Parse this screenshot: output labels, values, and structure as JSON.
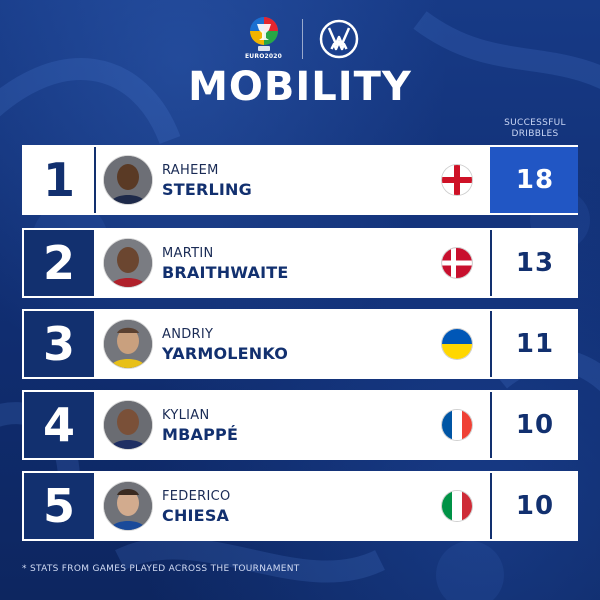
{
  "header": {
    "euro_logo_text": "EURO2020",
    "euro_logo_icon": "euro-2020-trophy-logo",
    "vw_logo_icon": "volkswagen-logo",
    "title": "MOBILITY"
  },
  "column_header": {
    "line1": "SUCCESSFUL",
    "line2": "DRIBBLES"
  },
  "colors": {
    "background": "#12306f",
    "accent_blue": "#2156c4",
    "text_navy": "#12306f",
    "white": "#ffffff"
  },
  "rankings": [
    {
      "rank": "1",
      "first_name": "RAHEEM",
      "last_name": "STERLING",
      "country_flag": "england-flag",
      "value": "18"
    },
    {
      "rank": "2",
      "first_name": "MARTIN",
      "last_name": "BRAITHWAITE",
      "country_flag": "denmark-flag",
      "value": "13"
    },
    {
      "rank": "3",
      "first_name": "ANDRIY",
      "last_name": "YARMOLENKO",
      "country_flag": "ukraine-flag",
      "value": "11"
    },
    {
      "rank": "4",
      "first_name": "KYLIAN",
      "last_name": "MBAPPÉ",
      "country_flag": "france-flag",
      "value": "10"
    },
    {
      "rank": "5",
      "first_name": "FEDERICO",
      "last_name": "CHIESA",
      "country_flag": "italy-flag",
      "value": "10"
    }
  ],
  "footnote": "* STATS FROM GAMES PLAYED ACROSS THE TOURNAMENT"
}
